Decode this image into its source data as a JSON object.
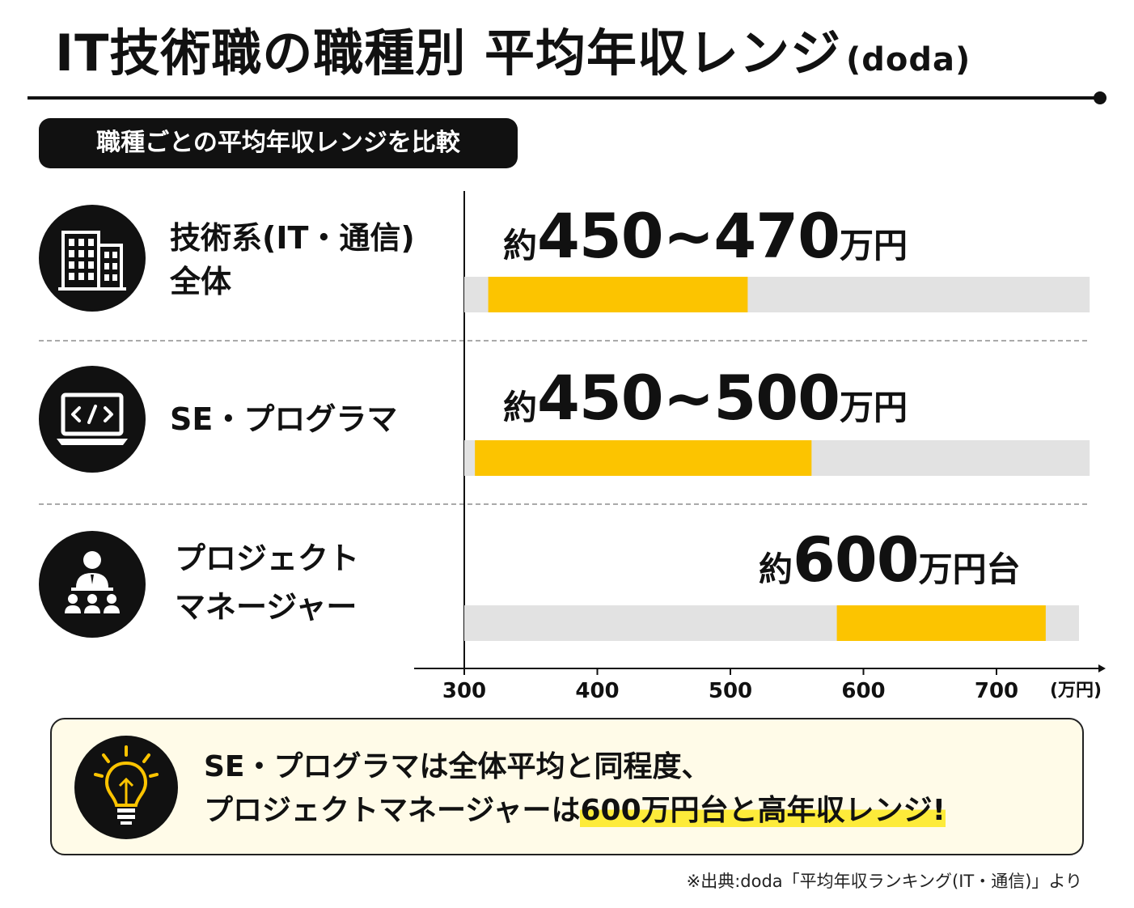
{
  "header": {
    "title": "IT技術職の職種別 平均年収レンジ",
    "title_suffix": "(doda)",
    "badge": "職種ごとの平均年収レンジを比較"
  },
  "rows": [
    {
      "label_line1": "技術系(IT・通信)",
      "label_line2": "全体",
      "value_prefix": "約",
      "value_main": "450~470",
      "value_suffix": "万円",
      "icon": "office-building-icon"
    },
    {
      "label_line1": "SE・プログラマ",
      "label_line2": "",
      "value_prefix": "約",
      "value_main": "450~500",
      "value_suffix": "万円",
      "icon": "laptop-code-icon"
    },
    {
      "label_line1": "プロジェクト",
      "label_line2": "マネージャー",
      "value_prefix": "約",
      "value_main": "600",
      "value_suffix": "万円台",
      "icon": "presenter-team-icon"
    }
  ],
  "chart_data": {
    "type": "bar",
    "orientation": "horizontal-range",
    "categories": [
      "技術系(IT・通信)全体",
      "SE・プログラマ",
      "プロジェクトマネージャー"
    ],
    "track": [
      [
        300,
        770
      ],
      [
        300,
        770
      ],
      [
        300,
        762
      ]
    ],
    "ranges": [
      [
        318,
        513
      ],
      [
        308,
        561
      ],
      [
        580,
        737
      ]
    ],
    "x_ticks": [
      300,
      400,
      500,
      600,
      700
    ],
    "x_unit": "(万円)",
    "xlim": [
      300,
      770
    ],
    "colors": {
      "bar": "#fcc400",
      "track": "#e2e2e2",
      "axis": "#111111"
    },
    "grid": false
  },
  "callout": {
    "line1": "SE・プログラマは全体平均と同程度、",
    "line2_plain": "プロジェクトマネージャーは",
    "line2_highlight": "600万円台と高年収レンジ!",
    "icon": "lightbulb-icon"
  },
  "source": "※出典:doda「平均年収ランキング(IT・通信)」より"
}
